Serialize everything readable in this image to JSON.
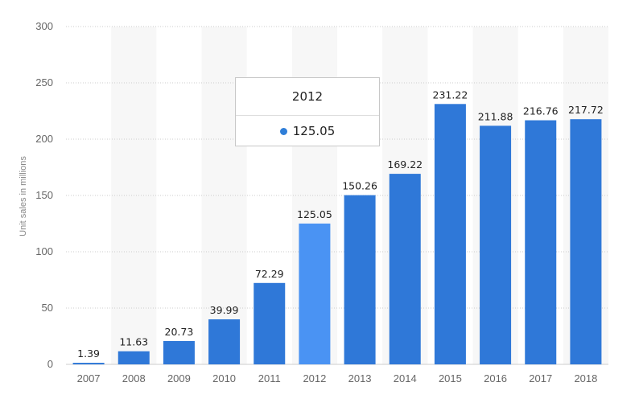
{
  "chart_data": {
    "type": "bar",
    "categories": [
      "2007",
      "2008",
      "2009",
      "2010",
      "2011",
      "2012",
      "2013",
      "2014",
      "2015",
      "2016",
      "2017",
      "2018"
    ],
    "values": [
      1.39,
      11.63,
      20.73,
      39.99,
      72.29,
      125.05,
      150.26,
      169.22,
      231.22,
      211.88,
      216.76,
      217.72
    ],
    "value_labels": [
      "1.39",
      "11.63",
      "20.73",
      "39.99",
      "72.29",
      "125.05",
      "150.26",
      "169.22",
      "231.22",
      "211.88",
      "216.76",
      "217.72"
    ],
    "title": "",
    "xlabel": "",
    "ylabel": "Unit sales in millions",
    "ylim": [
      0,
      300
    ],
    "yticks": [
      "0",
      "50",
      "100",
      "150",
      "200",
      "250",
      "300"
    ],
    "grid": true,
    "highlighted_category": "2012",
    "colors": {
      "bar": "#2f78d8",
      "bar_highlight": "#4a93f3",
      "band": "#f7f7f7",
      "grid": "#cccccc"
    }
  },
  "tooltip": {
    "title": "2012",
    "value": "125.05",
    "marker_color": "#2f7ed8"
  }
}
